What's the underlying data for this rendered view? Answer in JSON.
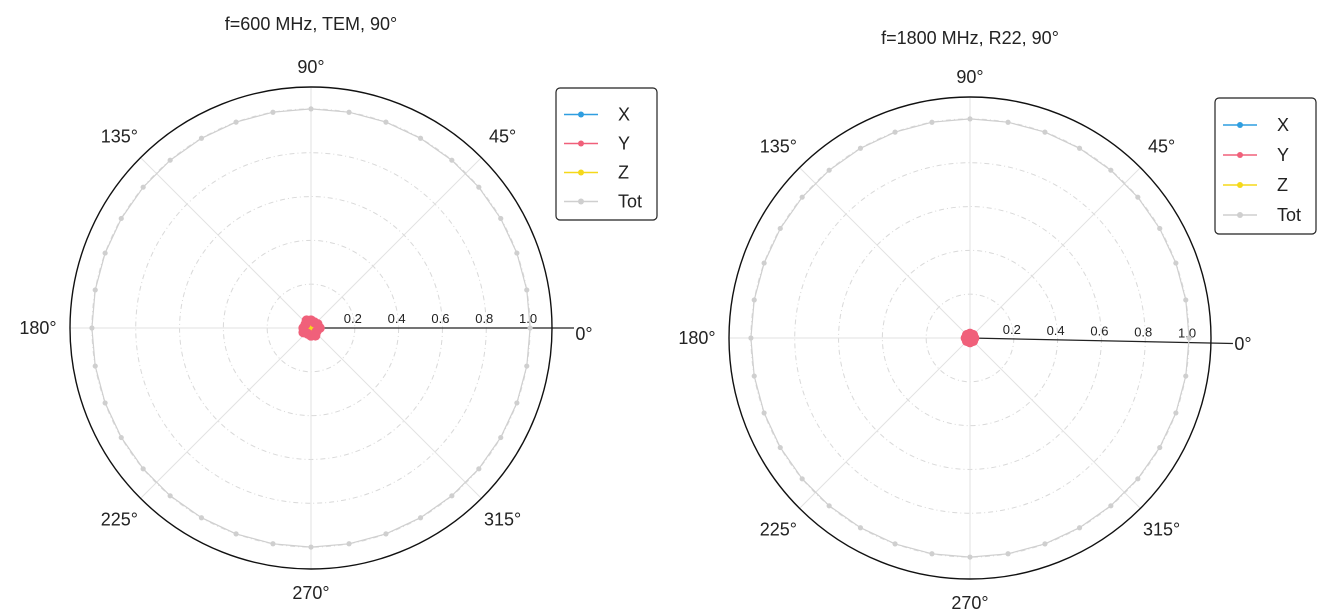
{
  "chart_data": [
    {
      "type": "polar",
      "title": "f=600 MHz, TEM, 90°",
      "angle_labels": [
        "0°",
        "45°",
        "90°",
        "135°",
        "180°",
        "225°",
        "270°",
        "315°"
      ],
      "radial_ticks": [
        "0.2",
        "0.4",
        "0.6",
        "0.8",
        "1.0"
      ],
      "rlim": [
        0,
        1.1
      ],
      "grid": true,
      "legend_position": "top-right",
      "series": [
        {
          "name": "X",
          "color": "#2f9ee0",
          "theta_deg": [
            0,
            90,
            180,
            270
          ],
          "r": [
            0.01,
            0.01,
            0.01,
            0.01
          ]
        },
        {
          "name": "Y",
          "color": "#f0607a",
          "theta_deg": [
            0,
            30,
            60,
            90,
            120,
            150,
            180,
            210,
            240,
            270,
            300,
            330
          ],
          "r": [
            0.04,
            0.035,
            0.03,
            0.035,
            0.04,
            0.03,
            0.035,
            0.04,
            0.03,
            0.035,
            0.04,
            0.03
          ]
        },
        {
          "name": "Z",
          "color": "#f5d81a",
          "theta_deg": [
            0,
            90,
            180,
            270
          ],
          "r": [
            0.01,
            0.01,
            0.01,
            0.01
          ]
        },
        {
          "name": "Tot",
          "color": "#cfcfcf",
          "theta_deg": [
            0,
            10,
            20,
            30,
            40,
            50,
            60,
            70,
            80,
            90,
            100,
            110,
            120,
            130,
            140,
            150,
            160,
            170,
            180,
            190,
            200,
            210,
            220,
            230,
            240,
            250,
            260,
            270,
            280,
            290,
            300,
            310,
            320,
            330,
            340,
            350
          ],
          "r": [
            1.0,
            1.0,
            1.0,
            1.0,
            1.0,
            1.0,
            1.0,
            1.0,
            1.0,
            1.0,
            1.0,
            1.0,
            1.0,
            1.0,
            1.0,
            1.0,
            1.0,
            1.0,
            1.0,
            1.0,
            1.0,
            1.0,
            1.0,
            1.0,
            1.0,
            1.0,
            1.0,
            1.0,
            1.0,
            1.0,
            1.0,
            1.0,
            1.0,
            1.0,
            1.0,
            1.0
          ]
        }
      ]
    },
    {
      "type": "polar",
      "title": "f=1800 MHz, R22, 90°",
      "angle_labels": [
        "0°",
        "45°",
        "90°",
        "135°",
        "180°",
        "225°",
        "270°",
        "315°"
      ],
      "radial_ticks": [
        "0.2",
        "0.4",
        "0.6",
        "0.8",
        "1.0"
      ],
      "rlim": [
        0,
        1.1
      ],
      "grid": true,
      "legend_position": "top-right",
      "series": [
        {
          "name": "X",
          "color": "#2f9ee0",
          "theta_deg": [
            0,
            90,
            180,
            270
          ],
          "r": [
            0.01,
            0.01,
            0.01,
            0.01
          ]
        },
        {
          "name": "Y",
          "color": "#f0607a",
          "theta_deg": [
            0,
            45,
            90,
            135,
            180,
            225,
            270,
            315
          ],
          "r": [
            0.02,
            0.02,
            0.02,
            0.02,
            0.02,
            0.02,
            0.02,
            0.02
          ]
        },
        {
          "name": "Z",
          "color": "#f5d81a",
          "theta_deg": [
            0,
            90,
            180,
            270
          ],
          "r": [
            0.01,
            0.01,
            0.01,
            0.01
          ]
        },
        {
          "name": "Tot",
          "color": "#cfcfcf",
          "theta_deg": [
            0,
            10,
            20,
            30,
            40,
            50,
            60,
            70,
            80,
            90,
            100,
            110,
            120,
            130,
            140,
            150,
            160,
            170,
            180,
            190,
            200,
            210,
            220,
            230,
            240,
            250,
            260,
            270,
            280,
            290,
            300,
            310,
            320,
            330,
            340,
            350
          ],
          "r": [
            1.0,
            1.0,
            1.0,
            1.0,
            1.0,
            1.0,
            1.0,
            1.0,
            1.0,
            1.0,
            1.0,
            1.0,
            1.0,
            1.0,
            1.0,
            1.0,
            1.0,
            1.0,
            1.0,
            1.0,
            1.0,
            1.0,
            1.0,
            1.0,
            1.0,
            1.0,
            1.0,
            1.0,
            1.0,
            1.0,
            1.0,
            1.0,
            1.0,
            1.0,
            1.0,
            1.0
          ]
        }
      ]
    }
  ]
}
